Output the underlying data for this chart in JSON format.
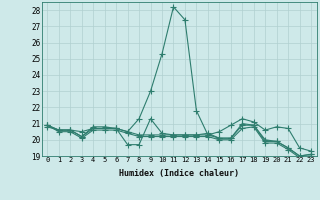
{
  "xlabel": "Humidex (Indice chaleur)",
  "x_values": [
    0,
    1,
    2,
    3,
    4,
    5,
    6,
    7,
    8,
    9,
    10,
    11,
    12,
    13,
    14,
    15,
    16,
    17,
    18,
    19,
    20,
    21,
    22,
    23
  ],
  "series": [
    {
      "name": "line1_spike",
      "y": [
        20.9,
        20.6,
        20.6,
        20.2,
        20.8,
        20.8,
        20.7,
        20.5,
        21.3,
        23.0,
        25.3,
        28.2,
        27.4,
        21.8,
        20.3,
        20.5,
        20.9,
        21.3,
        21.1,
        20.6,
        20.8,
        20.7,
        19.5,
        19.3
      ]
    },
    {
      "name": "line2_flat",
      "y": [
        20.8,
        20.6,
        20.6,
        20.5,
        20.7,
        20.7,
        20.7,
        19.7,
        19.7,
        21.3,
        20.4,
        20.3,
        20.3,
        20.3,
        20.4,
        20.1,
        20.1,
        21.0,
        20.9,
        20.0,
        19.9,
        19.5,
        19.0,
        19.1
      ]
    },
    {
      "name": "line3_mid",
      "y": [
        20.9,
        20.6,
        20.6,
        20.2,
        20.7,
        20.7,
        20.7,
        20.5,
        20.3,
        20.3,
        20.3,
        20.3,
        20.3,
        20.3,
        20.3,
        20.1,
        20.1,
        20.9,
        20.9,
        19.9,
        19.9,
        19.5,
        19.0,
        19.1
      ]
    },
    {
      "name": "line4_low",
      "y": [
        20.9,
        20.5,
        20.5,
        20.1,
        20.6,
        20.6,
        20.6,
        20.4,
        20.2,
        20.2,
        20.2,
        20.2,
        20.2,
        20.2,
        20.2,
        20.0,
        20.0,
        20.7,
        20.8,
        19.8,
        19.8,
        19.4,
        18.9,
        19.0
      ]
    }
  ],
  "line_color": "#2e7d6e",
  "bg_color": "#cee9e9",
  "grid_color": "#b0d0d0",
  "ylim": [
    19,
    28.5
  ],
  "yticks": [
    19,
    20,
    21,
    22,
    23,
    24,
    25,
    26,
    27,
    28
  ],
  "marker": "+",
  "markersize": 4,
  "linewidth": 0.8
}
